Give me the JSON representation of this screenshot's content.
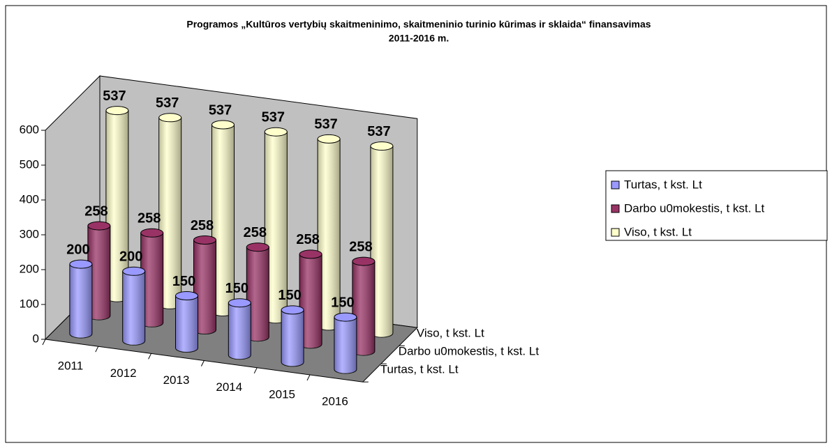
{
  "chart_data": {
    "type": "bar3d",
    "title": [
      "Programos „Kultūros vertybių skaitmeninimo,  skaitmeninio turinio kūrimas ir sklaida“ finansavimas",
      "2011-2016 m."
    ],
    "categories": [
      "2011",
      "2012",
      "2013",
      "2014",
      "2015",
      "2016"
    ],
    "series": [
      {
        "name": "Turtas, t  kst. Lt",
        "color": "#9999ff",
        "values": [
          200,
          200,
          150,
          150,
          150,
          150
        ]
      },
      {
        "name": "Darbo u0mokestis, t  kst. Lt",
        "color": "#993366",
        "values": [
          258,
          258,
          258,
          258,
          258,
          258
        ]
      },
      {
        "name": "Viso, t  kst. Lt",
        "color": "#ffffcc",
        "values": [
          537,
          537,
          537,
          537,
          537,
          537
        ]
      }
    ],
    "ylim": [
      0,
      600
    ],
    "yticks": [
      0,
      100,
      200,
      300,
      400,
      500,
      600
    ]
  }
}
